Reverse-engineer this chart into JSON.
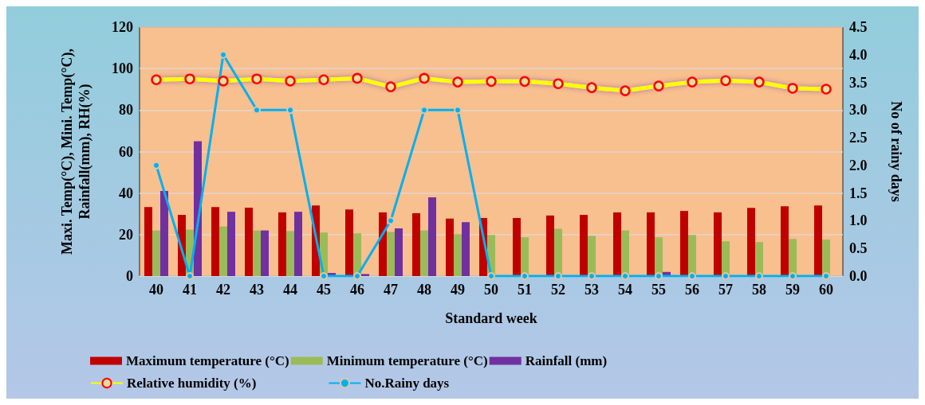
{
  "chart_data": {
    "type": "bar",
    "xlabel": "Standard week",
    "ylabel": "Maxi. Temp(°C), Mini. Temp(°C), Rainfall(mm), RH(%)",
    "y2label": "No of rainy days",
    "categories": [
      "40",
      "41",
      "42",
      "43",
      "44",
      "45",
      "46",
      "47",
      "48",
      "49",
      "50",
      "51",
      "52",
      "53",
      "54",
      "55",
      "56",
      "57",
      "58",
      "59",
      "60"
    ],
    "series": [
      {
        "name": "Maximum temperature (°C)",
        "color": "#c00000",
        "values": [
          33.3,
          29.5,
          33.3,
          33,
          30.7,
          34,
          32.1,
          30.7,
          30.3,
          27.7,
          28,
          28,
          29.2,
          29.5,
          30.7,
          30.7,
          31.4,
          30.7,
          32.9,
          33.6,
          34
        ]
      },
      {
        "name": "Minimum temperature (°C)",
        "color": "#9bbb59",
        "values": [
          22,
          22.4,
          23.9,
          22,
          21.7,
          21,
          20.6,
          21.3,
          22,
          20.2,
          19.8,
          18.7,
          22.8,
          19.4,
          22,
          18.7,
          19.8,
          16.8,
          16.4,
          17.9,
          17.6
        ]
      },
      {
        "name": "Rainfall (mm)",
        "color": "#7030a0",
        "values": [
          41,
          65,
          31,
          22,
          31,
          1.5,
          1,
          23,
          38,
          26,
          0,
          0,
          0,
          0,
          0,
          2,
          0,
          0,
          0,
          0,
          0
        ]
      },
      {
        "name": "Relative humidity (%)",
        "type": "line",
        "color": "#ffff00",
        "marker": "circle",
        "values": [
          94.6,
          95,
          94,
          95,
          94,
          94.6,
          95.3,
          91.2,
          95.3,
          93.5,
          93.8,
          93.8,
          92.7,
          90.8,
          89.3,
          91.6,
          93.5,
          94.2,
          93.5,
          90.5,
          90.1
        ]
      },
      {
        "name": "No.Rainy days",
        "type": "line",
        "color": "#00b0f0",
        "marker": "circle",
        "axis": "y2",
        "values": [
          2,
          0,
          4,
          3,
          3,
          0,
          0,
          1,
          3,
          3,
          0,
          0,
          0,
          0,
          0,
          0,
          0,
          0,
          0,
          0,
          0
        ]
      }
    ],
    "ylim": [
      0,
      120
    ],
    "yticks": [
      0,
      20,
      40,
      60,
      80,
      100,
      120
    ],
    "y2lim": [
      0,
      4.5
    ],
    "y2ticks": [
      {
        "value": 0,
        "label": "0.0"
      },
      {
        "value": 0.5,
        "label": "0.5"
      },
      {
        "value": 1,
        "label": "1.0"
      },
      {
        "value": 1.5,
        "label": "1.5"
      },
      {
        "value": 2,
        "label": "2.0"
      },
      {
        "value": 2.5,
        "label": "2.5"
      },
      {
        "value": 3,
        "label": "3.0"
      },
      {
        "value": 3.5,
        "label": "3.5"
      },
      {
        "value": 4,
        "label": "4.0"
      },
      {
        "value": 4.5,
        "label": "4.5"
      }
    ],
    "grid": "y",
    "legend": "bottom"
  }
}
